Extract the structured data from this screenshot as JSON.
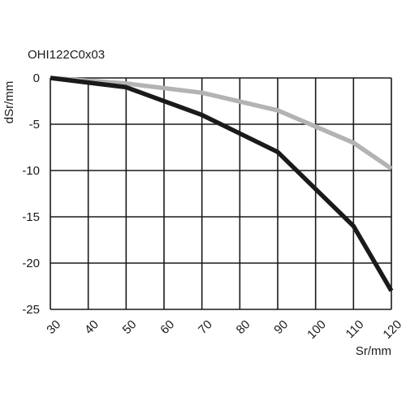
{
  "chart_data": {
    "type": "line",
    "title": "OHI122C0x03",
    "xlabel": "Sr/mm",
    "ylabel": "dSr/mm",
    "xlim": [
      30,
      120
    ],
    "ylim": [
      -25,
      0
    ],
    "x_ticks": [
      "30",
      "40",
      "50",
      "60",
      "70",
      "80",
      "90",
      "100",
      "110",
      "120"
    ],
    "y_ticks": [
      "0",
      "-5",
      "-10",
      "-15",
      "-20",
      "-25"
    ],
    "grid": true,
    "legend": "none",
    "series": [
      {
        "color": "#1a1a1a",
        "x": [
          30,
          50,
          70,
          90,
          110,
          120
        ],
        "y": [
          0,
          -1,
          -4,
          -8,
          -16,
          -23
        ]
      },
      {
        "color": "#b3b3b3",
        "x": [
          30,
          50,
          70,
          90,
          110,
          120
        ],
        "y": [
          0,
          -0.6,
          -1.6,
          -3.5,
          -7,
          -9.8
        ]
      }
    ]
  }
}
